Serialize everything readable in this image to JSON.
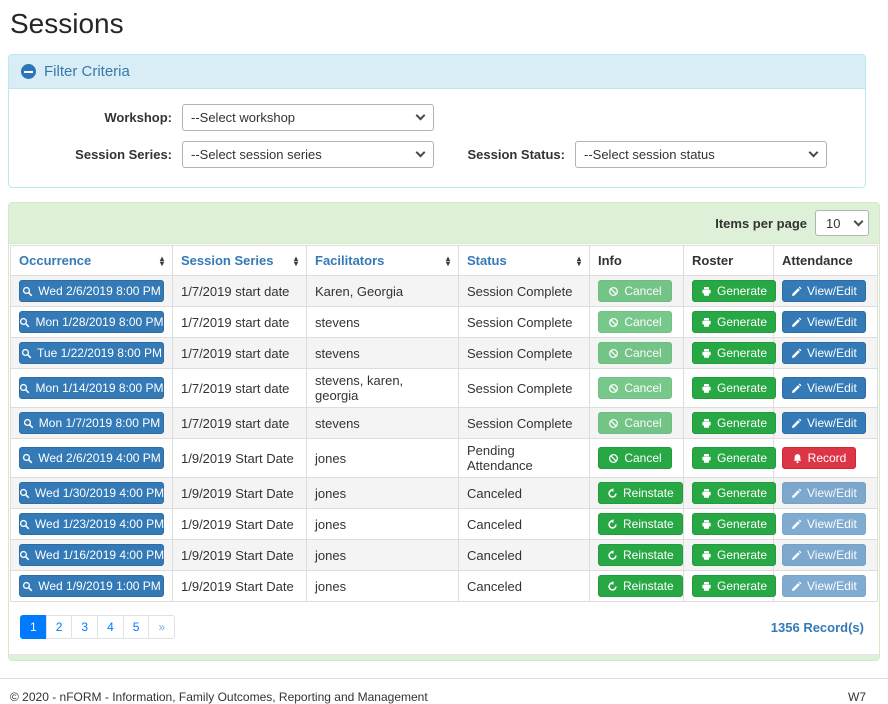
{
  "page": {
    "title": "Sessions"
  },
  "filter": {
    "title": "Filter Criteria",
    "workshop": {
      "label": "Workshop:",
      "selected": "--Select workshop"
    },
    "session_series": {
      "label": "Session Series:",
      "selected": "--Select session series"
    },
    "session_status": {
      "label": "Session Status:",
      "selected": "--Select session status"
    }
  },
  "toolbar": {
    "items_per_page_label": "Items per page",
    "items_per_page_value": "10"
  },
  "table": {
    "columns": [
      {
        "label": "Occurrence",
        "sortable": true
      },
      {
        "label": "Session Series",
        "sortable": true
      },
      {
        "label": "Facilitators",
        "sortable": true
      },
      {
        "label": "Status",
        "sortable": true
      },
      {
        "label": "Info",
        "sortable": false
      },
      {
        "label": "Roster",
        "sortable": false
      },
      {
        "label": "Attendance",
        "sortable": false
      }
    ],
    "rows": [
      {
        "occurrence": "Wed 2/6/2019 8:00 PM",
        "session_series": "1/7/2019 start date",
        "facilitators": "Karen, Georgia",
        "status": "Session Complete",
        "info": {
          "label": "Cancel",
          "icon": "ban",
          "variant": "success",
          "disabled": true
        },
        "roster": {
          "label": "Generate",
          "icon": "printer",
          "variant": "success",
          "disabled": false
        },
        "attendance": {
          "label": "View/Edit",
          "icon": "pencil",
          "variant": "primary",
          "disabled": false
        }
      },
      {
        "occurrence": "Mon 1/28/2019 8:00 PM",
        "session_series": "1/7/2019 start date",
        "facilitators": "stevens",
        "status": "Session Complete",
        "info": {
          "label": "Cancel",
          "icon": "ban",
          "variant": "success",
          "disabled": true
        },
        "roster": {
          "label": "Generate",
          "icon": "printer",
          "variant": "success",
          "disabled": false
        },
        "attendance": {
          "label": "View/Edit",
          "icon": "pencil",
          "variant": "primary",
          "disabled": false
        }
      },
      {
        "occurrence": "Tue 1/22/2019 8:00 PM",
        "session_series": "1/7/2019 start date",
        "facilitators": "stevens",
        "status": "Session Complete",
        "info": {
          "label": "Cancel",
          "icon": "ban",
          "variant": "success",
          "disabled": true
        },
        "roster": {
          "label": "Generate",
          "icon": "printer",
          "variant": "success",
          "disabled": false
        },
        "attendance": {
          "label": "View/Edit",
          "icon": "pencil",
          "variant": "primary",
          "disabled": false
        }
      },
      {
        "occurrence": "Mon 1/14/2019 8:00 PM",
        "session_series": "1/7/2019 start date",
        "facilitators": "stevens, karen, georgia",
        "status": "Session Complete",
        "info": {
          "label": "Cancel",
          "icon": "ban",
          "variant": "success",
          "disabled": true
        },
        "roster": {
          "label": "Generate",
          "icon": "printer",
          "variant": "success",
          "disabled": false
        },
        "attendance": {
          "label": "View/Edit",
          "icon": "pencil",
          "variant": "primary",
          "disabled": false
        }
      },
      {
        "occurrence": "Mon 1/7/2019 8:00 PM",
        "session_series": "1/7/2019 start date",
        "facilitators": "stevens",
        "status": "Session Complete",
        "info": {
          "label": "Cancel",
          "icon": "ban",
          "variant": "success",
          "disabled": true
        },
        "roster": {
          "label": "Generate",
          "icon": "printer",
          "variant": "success",
          "disabled": false
        },
        "attendance": {
          "label": "View/Edit",
          "icon": "pencil",
          "variant": "primary",
          "disabled": false
        }
      },
      {
        "occurrence": "Wed 2/6/2019 4:00 PM",
        "session_series": "1/9/2019 Start Date",
        "facilitators": "jones",
        "status": "Pending Attendance",
        "info": {
          "label": "Cancel",
          "icon": "ban",
          "variant": "success",
          "disabled": false
        },
        "roster": {
          "label": "Generate",
          "icon": "printer",
          "variant": "success",
          "disabled": false
        },
        "attendance": {
          "label": "Record",
          "icon": "bell",
          "variant": "danger",
          "disabled": false
        }
      },
      {
        "occurrence": "Wed 1/30/2019 4:00 PM",
        "session_series": "1/9/2019 Start Date",
        "facilitators": "jones",
        "status": "Canceled",
        "info": {
          "label": "Reinstate",
          "icon": "undo",
          "variant": "success",
          "disabled": false
        },
        "roster": {
          "label": "Generate",
          "icon": "printer",
          "variant": "success",
          "disabled": false
        },
        "attendance": {
          "label": "View/Edit",
          "icon": "pencil",
          "variant": "primary",
          "disabled": true
        }
      },
      {
        "occurrence": "Wed 1/23/2019 4:00 PM",
        "session_series": "1/9/2019 Start Date",
        "facilitators": "jones",
        "status": "Canceled",
        "info": {
          "label": "Reinstate",
          "icon": "undo",
          "variant": "success",
          "disabled": false
        },
        "roster": {
          "label": "Generate",
          "icon": "printer",
          "variant": "success",
          "disabled": false
        },
        "attendance": {
          "label": "View/Edit",
          "icon": "pencil",
          "variant": "primary",
          "disabled": true
        }
      },
      {
        "occurrence": "Wed 1/16/2019 4:00 PM",
        "session_series": "1/9/2019 Start Date",
        "facilitators": "jones",
        "status": "Canceled",
        "info": {
          "label": "Reinstate",
          "icon": "undo",
          "variant": "success",
          "disabled": false
        },
        "roster": {
          "label": "Generate",
          "icon": "printer",
          "variant": "success",
          "disabled": false
        },
        "attendance": {
          "label": "View/Edit",
          "icon": "pencil",
          "variant": "primary",
          "disabled": true
        }
      },
      {
        "occurrence": "Wed 1/9/2019 1:00 PM",
        "session_series": "1/9/2019 Start Date",
        "facilitators": "jones",
        "status": "Canceled",
        "info": {
          "label": "Reinstate",
          "icon": "undo",
          "variant": "success",
          "disabled": false
        },
        "roster": {
          "label": "Generate",
          "icon": "printer",
          "variant": "success",
          "disabled": false
        },
        "attendance": {
          "label": "View/Edit",
          "icon": "pencil",
          "variant": "primary",
          "disabled": true
        }
      }
    ]
  },
  "pagination": {
    "pages": [
      "1",
      "2",
      "3",
      "4",
      "5",
      "»"
    ],
    "active": "1",
    "record_count": "1356 Record(s)"
  },
  "footer": {
    "copyright": "© 2020 - nFORM - Information, Family Outcomes, Reporting and Management",
    "environment": "W7"
  },
  "colors": {
    "primary": "#337ab7",
    "success": "#28a745",
    "danger": "#dc3545",
    "link": "#007bff",
    "info_bg": "#d9edf7",
    "info_border": "#bce8f1",
    "info_text": "#3879a8",
    "success_bg": "#dff0d8",
    "success_border": "#d6e9c6",
    "row_stripe": "#f4f4f4"
  },
  "icons": {
    "minus-circle": "●–",
    "search": "⌕",
    "ban": "⊘",
    "printer": "⎙",
    "pencil": "✎",
    "bell": "🔔",
    "undo": "↺",
    "chevron-down": "⌄",
    "sort_asc": "▴",
    "sort_desc": "▾"
  }
}
